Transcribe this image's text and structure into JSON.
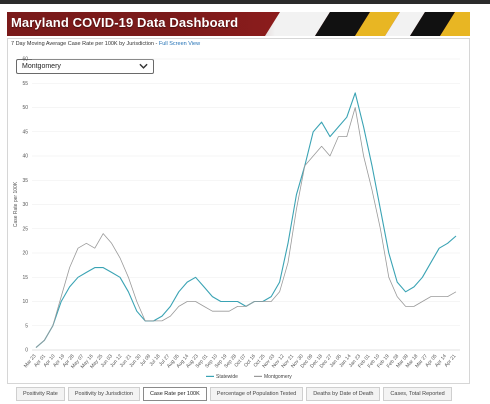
{
  "header": {
    "title": "Maryland COVID-19 Data Dashboard"
  },
  "panel": {
    "subtitle": "7 Day Moving Average Case Rate per 100K by Jurisdiction - ",
    "full_screen_link": "Full Screen View"
  },
  "jurisdiction_select": {
    "value": "Montgomery"
  },
  "tabs": [
    {
      "label": "Positivity Rate",
      "active": false
    },
    {
      "label": "Positivity by Jurisdiction",
      "active": false
    },
    {
      "label": "Case Rate per 100K",
      "active": true
    },
    {
      "label": "Percentage of Population Tested",
      "active": false
    },
    {
      "label": "Deaths by Date of Death",
      "active": false
    },
    {
      "label": "Cases, Total Reported",
      "active": false
    }
  ],
  "colors": {
    "statewide": "#3aa3b4",
    "montgomery": "#9a9a9a",
    "banner": "#7a1a1a"
  },
  "chart_data": {
    "type": "line",
    "ylabel": "Case Rate per 100K",
    "ylim": [
      0,
      60
    ],
    "yticks": [
      0,
      5,
      10,
      15,
      20,
      25,
      30,
      35,
      40,
      45,
      50,
      55,
      60
    ],
    "x_ticks": [
      "Mar 23",
      "Apr 01",
      "Apr 10",
      "Apr 19",
      "Apr 28",
      "May 07",
      "May 16",
      "May 25",
      "Jun 03",
      "Jun 12",
      "Jun 21",
      "Jun 30",
      "Jul 09",
      "Jul 18",
      "Jul 27",
      "Aug 05",
      "Aug 14",
      "Aug 23",
      "Sep 01",
      "Sep 10",
      "Sep 19",
      "Sep 28",
      "Oct 07",
      "Oct 16",
      "Oct 25",
      "Nov 03",
      "Nov 12",
      "Nov 21",
      "Nov 30",
      "Dec 09",
      "Dec 18",
      "Dec 27",
      "Jan 05",
      "Jan 14",
      "Jan 23",
      "Feb 01",
      "Feb 10",
      "Feb 19",
      "Feb 28",
      "Mar 09",
      "Mar 18",
      "Mar 27",
      "Apr 05",
      "Apr 14",
      "Apr 21"
    ],
    "series": [
      {
        "name": "Statewide",
        "values": [
          0.5,
          2,
          5,
          10,
          13,
          15,
          16,
          17,
          17,
          16,
          15,
          12,
          8,
          6,
          6,
          7,
          9,
          12,
          14,
          15,
          13,
          11,
          10,
          10,
          10,
          9,
          10,
          10,
          11,
          14,
          22,
          32,
          38,
          45,
          47,
          44,
          46,
          48,
          53,
          46,
          38,
          29,
          20,
          14,
          12,
          13,
          15,
          18,
          21,
          22,
          23.5
        ]
      },
      {
        "name": "Montgomery",
        "values": [
          0.5,
          2,
          5,
          11,
          17,
          21,
          22,
          21,
          24,
          22,
          19,
          15,
          10,
          6,
          6,
          6,
          7,
          9,
          10,
          10,
          9,
          8,
          8,
          8,
          9,
          9,
          10,
          10,
          10,
          12,
          18,
          29,
          38,
          40,
          42,
          40,
          44,
          44,
          50,
          40,
          33,
          25,
          15,
          11,
          9,
          9,
          10,
          11,
          11,
          11,
          12
        ]
      }
    ],
    "legend": {
      "placement": "bottom-center"
    },
    "grid": true
  }
}
